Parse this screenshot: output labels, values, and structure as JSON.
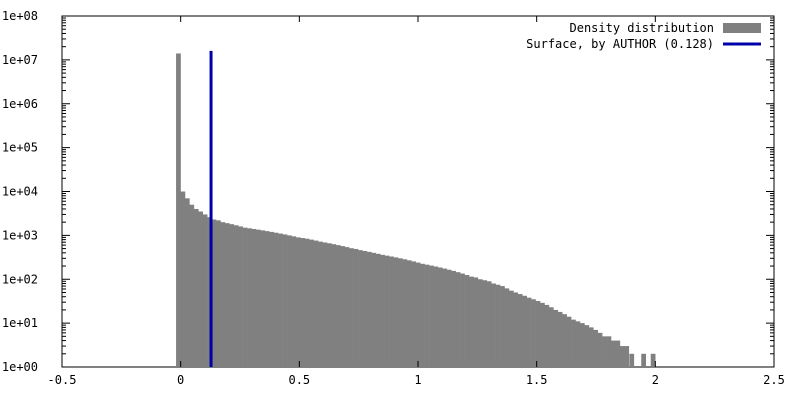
{
  "chart_data": {
    "type": "bar",
    "yscale": "log",
    "xlim": [
      -0.5,
      2.5
    ],
    "ylim": [
      1,
      100000000
    ],
    "grid": false,
    "legend_position": "top-right",
    "xticks": [
      {
        "value": -0.5,
        "label": "-0.5"
      },
      {
        "value": 0,
        "label": "0"
      },
      {
        "value": 0.5,
        "label": "0.5"
      },
      {
        "value": 1,
        "label": "1"
      },
      {
        "value": 1.5,
        "label": "1.5"
      },
      {
        "value": 2,
        "label": "2"
      },
      {
        "value": 2.5,
        "label": "2.5"
      }
    ],
    "yticks": [
      {
        "value": 1,
        "label": "1e+00"
      },
      {
        "value": 10,
        "label": "1e+01"
      },
      {
        "value": 100,
        "label": "1e+02"
      },
      {
        "value": 1000,
        "label": "1e+03"
      },
      {
        "value": 10000,
        "label": "1e+04"
      },
      {
        "value": 100000,
        "label": "1e+05"
      },
      {
        "value": 1000000,
        "label": "1e+06"
      },
      {
        "value": 10000000,
        "label": "1e+07"
      },
      {
        "value": 100000000,
        "label": "1e+08"
      }
    ],
    "series": [
      {
        "name": "Density distribution",
        "kind": "histogram",
        "color": "#808080",
        "bin_width": 0.0187,
        "x": [
          -0.01,
          0.0087,
          0.0274,
          0.0461,
          0.0648,
          0.0835,
          0.1022,
          0.1209,
          0.1396,
          0.1583,
          0.177,
          0.1957,
          0.2144,
          0.2331,
          0.2518,
          0.2705,
          0.2892,
          0.3079,
          0.3266,
          0.3453,
          0.364,
          0.3827,
          0.4014,
          0.4201,
          0.4388,
          0.4575,
          0.4762,
          0.4949,
          0.5136,
          0.5323,
          0.551,
          0.5697,
          0.5884,
          0.6071,
          0.6258,
          0.6445,
          0.6632,
          0.6819,
          0.7006,
          0.7193,
          0.738,
          0.7567,
          0.7754,
          0.7941,
          0.8128,
          0.8315,
          0.8502,
          0.8689,
          0.8876,
          0.9063,
          0.925,
          0.9437,
          0.9624,
          0.9811,
          0.9998,
          1.0185,
          1.0372,
          1.0559,
          1.0746,
          1.0933,
          1.112,
          1.1307,
          1.1494,
          1.1681,
          1.1868,
          1.2055,
          1.2242,
          1.2429,
          1.2616,
          1.2803,
          1.299,
          1.3177,
          1.3364,
          1.3551,
          1.3738,
          1.3925,
          1.4112,
          1.4299,
          1.4486,
          1.4673,
          1.486,
          1.5047,
          1.5234,
          1.5421,
          1.5608,
          1.5795,
          1.5982,
          1.6169,
          1.6356,
          1.6543,
          1.673,
          1.6917,
          1.7104,
          1.7291,
          1.7478,
          1.7665,
          1.7852,
          1.8039,
          1.8226,
          1.8413,
          1.86,
          1.8787,
          1.9,
          1.92,
          1.93,
          1.95,
          1.97,
          1.99
        ],
        "values": [
          14000000,
          10000,
          7000,
          5000,
          4000,
          3500,
          3000,
          2600,
          2300,
          2200,
          2000,
          1900,
          1800,
          1700,
          1600,
          1500,
          1450,
          1400,
          1350,
          1300,
          1250,
          1200,
          1150,
          1100,
          1050,
          1000,
          950,
          900,
          870,
          840,
          800,
          760,
          720,
          690,
          660,
          630,
          600,
          570,
          540,
          510,
          490,
          460,
          440,
          420,
          400,
          380,
          360,
          345,
          330,
          315,
          300,
          285,
          270,
          255,
          240,
          225,
          215,
          205,
          195,
          185,
          175,
          165,
          155,
          145,
          135,
          125,
          115,
          110,
          100,
          95,
          90,
          80,
          75,
          70,
          62,
          55,
          50,
          46,
          42,
          38,
          35,
          32,
          29,
          26,
          23,
          20,
          18,
          16,
          14,
          12,
          11,
          10,
          9,
          8,
          7,
          6,
          5,
          5,
          4,
          4,
          3,
          3,
          2,
          0,
          0,
          2,
          0,
          2
        ]
      },
      {
        "name": "Surface, by AUTHOR (0.128)",
        "kind": "vline",
        "color": "#0000aa",
        "x": 0.128,
        "y_top": 16000000
      }
    ]
  }
}
